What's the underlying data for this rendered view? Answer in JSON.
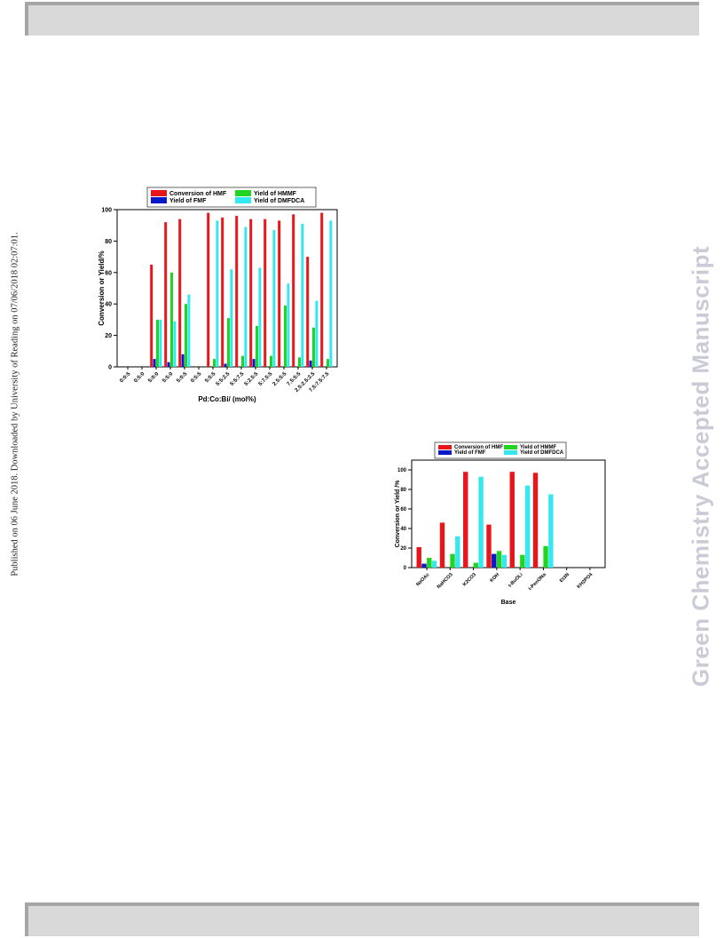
{
  "side_text": "Published on 06 June 2018. Downloaded by University of Reading on 07/06/2018 02:07:01.",
  "watermark": "Green Chemistry Accepted Manuscript",
  "chart_data": [
    {
      "type": "bar",
      "xlabel": "Pd:Co:Bi/ (mol%)",
      "ylabel": "Conversion or Yield/%",
      "ylim": [
        0,
        100
      ],
      "yticks": [
        0,
        20,
        40,
        60,
        80,
        100
      ],
      "legend_placement": "top",
      "categories": [
        "0:0:5",
        "0:5:0",
        "5:0:0",
        "5:5:0",
        "5:0:5",
        "0:5:5",
        "5:5:5",
        "5:5:2.5",
        "5:5:7.5",
        "5:2.5:5",
        "5:7.5:5",
        "2.5:5:5",
        "7.5:5:5",
        "2.5:2.5:2.5",
        "7.5:7.5:7.5"
      ],
      "series": [
        {
          "name": "Conversion of HMF",
          "color": "#e8151b",
          "values": [
            0,
            0,
            65,
            92,
            94,
            0,
            98,
            95,
            96,
            94,
            94,
            93,
            97,
            70,
            98
          ]
        },
        {
          "name": "Yield of FMF",
          "color": "#0a19c8",
          "values": [
            0,
            0,
            5,
            3,
            8,
            0,
            0,
            2,
            0,
            5,
            0,
            0,
            0,
            4,
            0
          ]
        },
        {
          "name": "Yield of HMMF",
          "color": "#22d422",
          "values": [
            0,
            0,
            30,
            60,
            40,
            0,
            5,
            31,
            7,
            26,
            7,
            39,
            6,
            25,
            5
          ]
        },
        {
          "name": "Yield of DMFDCA",
          "color": "#33e8ee",
          "values": [
            0,
            0,
            30,
            29,
            46,
            0,
            93,
            62,
            89,
            63,
            87,
            53,
            91,
            42,
            93
          ]
        }
      ]
    },
    {
      "type": "bar",
      "xlabel": "Base",
      "ylabel": "Conversion or Yield /%",
      "ylim": [
        0,
        110
      ],
      "yticks": [
        0,
        20,
        40,
        60,
        80,
        100
      ],
      "legend_placement": "top",
      "categories": [
        "NaOAc",
        "NaHCO3",
        "K2CO3",
        "KOH",
        "t-BuOLi",
        "t-PenONa",
        "Et3N",
        "KH2PO4"
      ],
      "series": [
        {
          "name": "Conversion of HMF",
          "color": "#e8151b",
          "values": [
            21,
            46,
            98,
            44,
            98,
            97,
            0,
            0
          ]
        },
        {
          "name": "Yield of FMF",
          "color": "#0a19c8",
          "values": [
            4,
            0,
            0,
            14,
            0,
            0,
            0,
            0
          ]
        },
        {
          "name": "Yield of HMMF",
          "color": "#22d422",
          "values": [
            10,
            14,
            5,
            17,
            13,
            22,
            0,
            0
          ]
        },
        {
          "name": "Yield of DMFDCA",
          "color": "#33e8ee",
          "values": [
            7,
            32,
            93,
            13,
            84,
            75,
            0,
            0
          ]
        }
      ]
    }
  ]
}
